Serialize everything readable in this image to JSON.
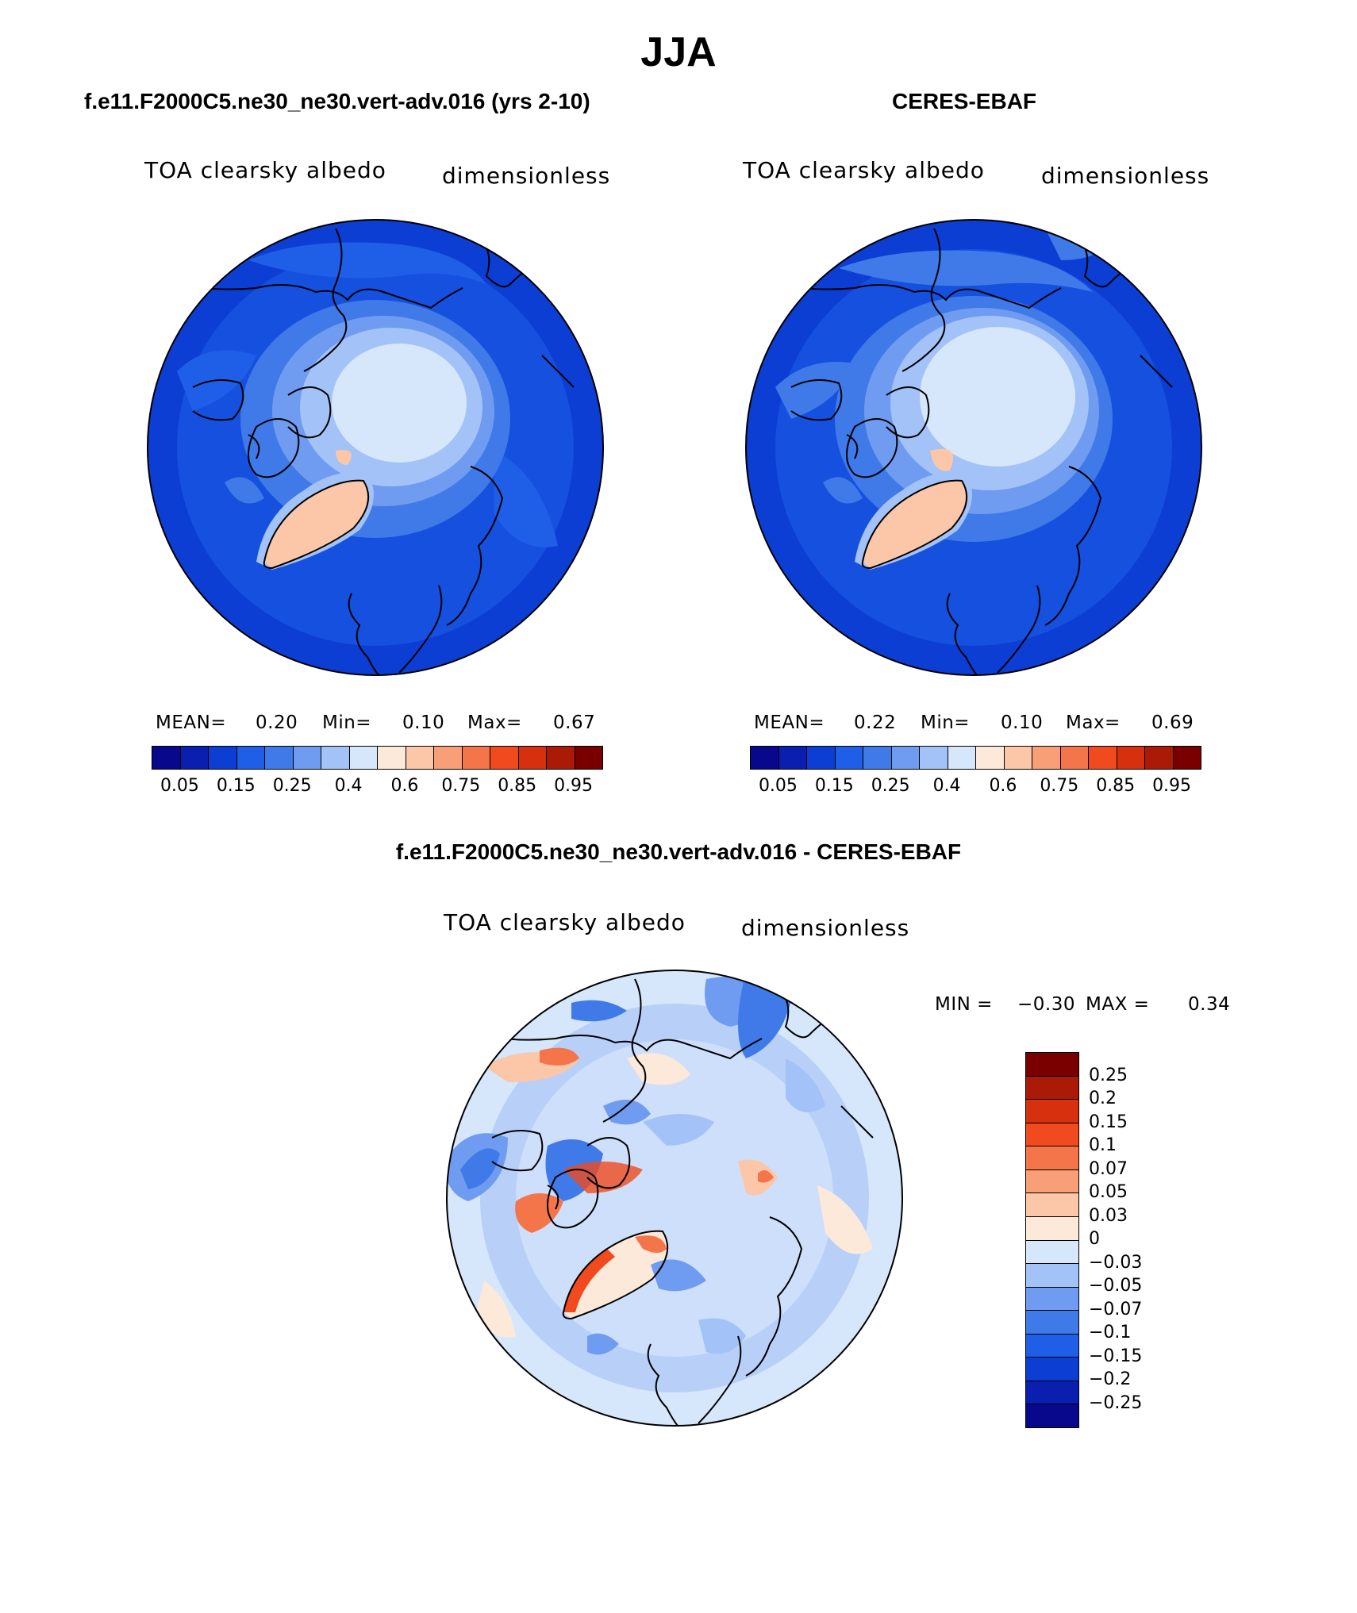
{
  "page": {
    "season_title": "JJA",
    "model_title": "f.e11.F2000C5.ne30_ne30.vert-adv.016 (yrs 2-10)",
    "obs_title": "CERES-EBAF",
    "diff_title": "f.e11.F2000C5.ne30_ne30.vert-adv.016 - CERES-EBAF"
  },
  "panels": {
    "model": {
      "variable": "TOA clearsky albedo",
      "units": "dimensionless",
      "stats": {
        "mean_label": "MEAN=",
        "mean": "0.20",
        "min_label": "Min=",
        "min": "0.10",
        "max_label": "Max=",
        "max": "0.67"
      }
    },
    "obs": {
      "variable": "TOA clearsky albedo",
      "units": "dimensionless",
      "stats": {
        "mean_label": "MEAN=",
        "mean": "0.22",
        "min_label": "Min=",
        "min": "0.10",
        "max_label": "Max=",
        "max": "0.69"
      }
    },
    "diff": {
      "variable": "TOA clearsky albedo",
      "units": "dimensionless",
      "stats": {
        "min_label": "MIN =",
        "min": "−0.30",
        "max_label": "MAX =",
        "max": "0.34"
      }
    }
  },
  "colorbar_abs": {
    "tick_labels": [
      "0.05",
      "0.15",
      "0.25",
      "0.4",
      "0.6",
      "0.75",
      "0.85",
      "0.95"
    ],
    "colors": [
      "#08088c",
      "#0a1fb0",
      "#0c3ed4",
      "#1f5fe8",
      "#3f7ae8",
      "#6f9cf0",
      "#a3c2f7",
      "#d6e6fb",
      "#fde9da",
      "#fbc7a8",
      "#f89f78",
      "#f5754a",
      "#f04a1e",
      "#d6300e",
      "#ab1a06",
      "#7a0000"
    ]
  },
  "colorbar_diff": {
    "tick_labels": [
      "0.25",
      "0.2",
      "0.15",
      "0.1",
      "0.07",
      "0.05",
      "0.03",
      "0",
      "−0.03",
      "−0.05",
      "−0.07",
      "−0.1",
      "−0.15",
      "−0.2",
      "−0.25"
    ],
    "colors": [
      "#7a0000",
      "#ab1a06",
      "#d6300e",
      "#f04a1e",
      "#f5754a",
      "#f89f78",
      "#fbc7a8",
      "#fde9da",
      "#d6e6fb",
      "#a3c2f7",
      "#6f9cf0",
      "#3f7ae8",
      "#1f5fe8",
      "#0c3ed4",
      "#0a1fb0",
      "#08088c"
    ]
  }
}
